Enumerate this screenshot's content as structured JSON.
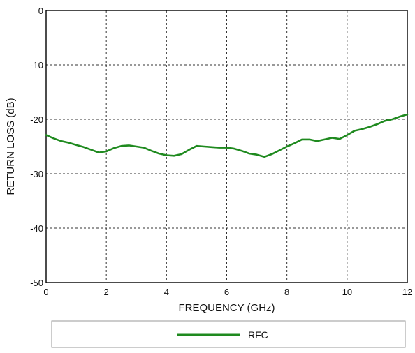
{
  "chart_data": {
    "type": "line",
    "title": "",
    "xlabel": "FREQUENCY (GHz)",
    "ylabel": "RETURN LOSS (dB)",
    "xlim": [
      0,
      12
    ],
    "ylim": [
      -50,
      0
    ],
    "xticks": [
      0,
      2,
      4,
      6,
      8,
      10,
      12
    ],
    "yticks": [
      0,
      -10,
      -20,
      -30,
      -40,
      -50
    ],
    "grid": true,
    "grid_style": "dashed",
    "legend_position": "bottom",
    "series": [
      {
        "name": "RFC",
        "color": "#1f8a1f",
        "x": [
          0,
          0.25,
          0.5,
          0.75,
          1.0,
          1.25,
          1.5,
          1.75,
          2.0,
          2.25,
          2.5,
          2.75,
          3.0,
          3.25,
          3.5,
          3.75,
          4.0,
          4.25,
          4.5,
          4.75,
          5.0,
          5.25,
          5.5,
          5.75,
          6.0,
          6.25,
          6.5,
          6.75,
          7.0,
          7.25,
          7.5,
          7.75,
          8.0,
          8.25,
          8.5,
          8.75,
          9.0,
          9.25,
          9.5,
          9.75,
          10.0,
          10.25,
          10.5,
          10.75,
          11.0,
          11.25,
          11.5,
          11.75,
          12.0
        ],
        "y": [
          -22.9,
          -23.5,
          -24.0,
          -24.3,
          -24.7,
          -25.1,
          -25.6,
          -26.1,
          -25.9,
          -25.3,
          -24.9,
          -24.8,
          -25.0,
          -25.2,
          -25.8,
          -26.3,
          -26.6,
          -26.7,
          -26.4,
          -25.6,
          -24.9,
          -25.0,
          -25.1,
          -25.2,
          -25.2,
          -25.4,
          -25.8,
          -26.3,
          -26.5,
          -26.9,
          -26.4,
          -25.7,
          -25.0,
          -24.4,
          -23.7,
          -23.7,
          -24.0,
          -23.7,
          -23.4,
          -23.6,
          -22.9,
          -22.1,
          -21.8,
          -21.4,
          -20.9,
          -20.3,
          -20.0,
          -19.5,
          -19.1
        ]
      }
    ]
  }
}
